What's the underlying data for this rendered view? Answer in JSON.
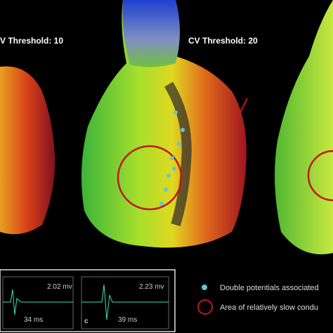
{
  "panels": [
    {
      "title": "V Threshold: 10"
    },
    {
      "title": "CV Threshold: 20"
    }
  ],
  "signals": [
    {
      "amplitude": "2.02 mv",
      "duration": "34 ms"
    },
    {
      "label": "c",
      "amplitude": "2.23 mv",
      "duration": "39 ms"
    }
  ],
  "legend": [
    {
      "label": "Double potentials associated"
    },
    {
      "label": "Area of relatively slow condu"
    }
  ]
}
